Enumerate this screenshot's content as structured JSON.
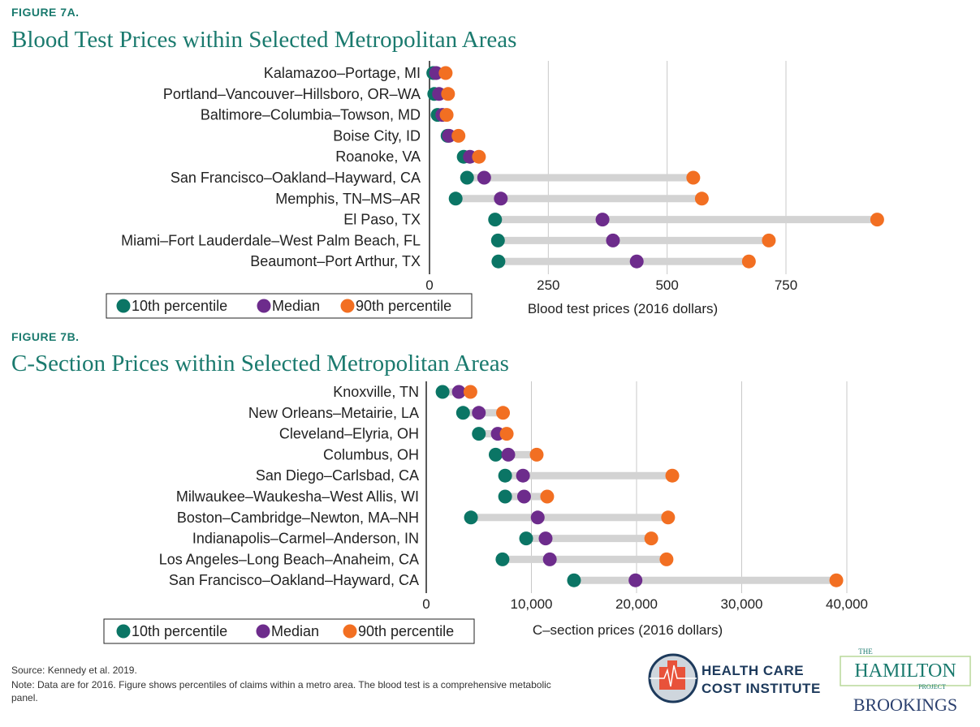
{
  "colors": {
    "p10": "#0b7565",
    "median": "#6d2c8c",
    "p90": "#f26f22",
    "range_bar": "#d3d3d3",
    "title": "#1a7a6e"
  },
  "chart_data": [
    {
      "type": "dumbbell",
      "figure_label": "FIGURE 7A.",
      "title": "Blood Test Prices within Selected Metropolitan Areas",
      "xlabel": "Blood test prices (2016 dollars)",
      "xlim": [
        0,
        950
      ],
      "xticks": [
        "0",
        "250",
        "500",
        "750"
      ],
      "xtick_values": [
        0,
        250,
        500,
        750
      ],
      "grid": "vertical",
      "legend": [
        "10th percentile",
        "Median",
        "90th percentile"
      ],
      "legend_position": "bottom-left",
      "categories": [
        "Kalamazoo–Portage, MI",
        "Portland–Vancouver–Hillsboro, OR–WA",
        "Baltimore–Columbia–Towson, MD",
        "Boise City, ID",
        "Roanoke, VA",
        "San Francisco–Oakland–Hayward, CA",
        "Memphis, TN–MS–AR",
        "El Paso, TX",
        "Miami–Fort Lauderdale–West Palm Beach, FL",
        "Beaumont–Port Arthur, TX"
      ],
      "series": [
        {
          "name": "10th percentile",
          "values": [
            8,
            10,
            17,
            38,
            72,
            79,
            55,
            138,
            144,
            145
          ]
        },
        {
          "name": "Median",
          "values": [
            14,
            20,
            27,
            41,
            85,
            115,
            150,
            364,
            386,
            436
          ]
        },
        {
          "name": "90th percentile",
          "values": [
            34,
            39,
            36,
            61,
            104,
            555,
            573,
            942,
            714,
            672
          ]
        }
      ]
    },
    {
      "type": "dumbbell",
      "figure_label": "FIGURE 7B.",
      "title": "C-Section Prices within Selected Metropolitan Areas",
      "xlabel": "C–section prices (2016 dollars)",
      "xlim": [
        0,
        40500
      ],
      "xticks": [
        "0",
        "10,000",
        "20,000",
        "30,000",
        "40,000"
      ],
      "xtick_values": [
        0,
        10000,
        20000,
        30000,
        40000
      ],
      "grid": "vertical",
      "legend": [
        "10th percentile",
        "Median",
        "90th percentile"
      ],
      "legend_position": "bottom-left",
      "categories": [
        "Knoxville, TN",
        "New Orleans–Metairie, LA",
        "Cleveland–Elyria, OH",
        "Columbus, OH",
        "San Diego–Carlsbad, CA",
        "Milwaukee–Waukesha–West Allis, WI",
        "Boston–Cambridge–Newton, MA–NH",
        "Indianapolis–Carmel–Anderson, IN",
        "Los Angeles–Long Beach–Anaheim, CA",
        "San Francisco–Oakland–Hayward, CA"
      ],
      "series": [
        {
          "name": "10th percentile",
          "values": [
            1550,
            3500,
            5000,
            6600,
            7500,
            7500,
            4250,
            9500,
            7250,
            14050
          ]
        },
        {
          "name": "Median",
          "values": [
            3100,
            5000,
            6800,
            7800,
            9200,
            9300,
            10600,
            11350,
            11750,
            19900
          ]
        },
        {
          "name": "90th percentile",
          "values": [
            4200,
            7300,
            7650,
            10500,
            23400,
            11500,
            23000,
            21400,
            22850,
            39000
          ]
        }
      ]
    }
  ],
  "footer": {
    "source": "Source: Kennedy et al. 2019.",
    "note_line1": "Note: Data are for 2016. Figure shows percentiles of claims within a metro area. The blood test is a comprehensive metabolic",
    "note_line2": "panel."
  },
  "logos": {
    "hcci_line1": "HEALTH CARE",
    "hcci_line2": "COST INSTITUTE",
    "hamilton_the": "THE",
    "hamilton_name": "HAMILTON",
    "hamilton_project": "PROJECT",
    "brookings": "BROOKINGS"
  }
}
